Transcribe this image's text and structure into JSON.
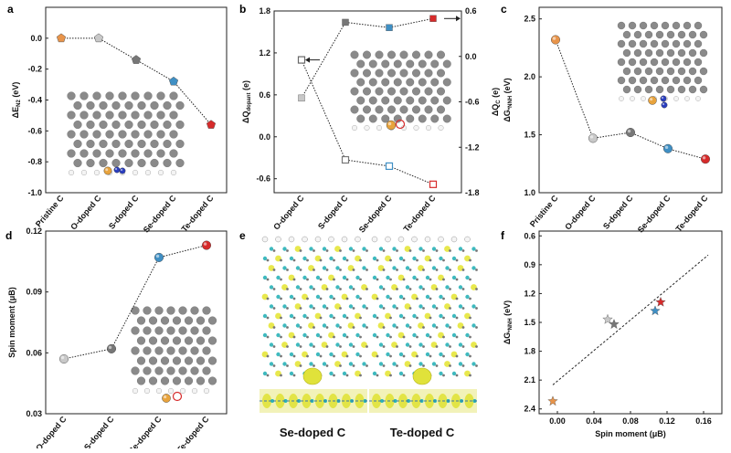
{
  "panels": {
    "a": {
      "letter": "a"
    },
    "b": {
      "letter": "b"
    },
    "c": {
      "letter": "c"
    },
    "d": {
      "letter": "d"
    },
    "e": {
      "letter": "e",
      "left_caption": "Se-doped C",
      "right_caption": "Te-doped C"
    },
    "f": {
      "letter": "f"
    }
  },
  "chart_data": [
    {
      "panel": "a",
      "type": "line",
      "categories": [
        "Pristine C",
        "O-doped C",
        "S-doped C",
        "Se-doped C",
        "Te-doped C"
      ],
      "series": [
        {
          "values": [
            0.0,
            0.0,
            -0.14,
            -0.28,
            -0.56
          ]
        }
      ],
      "ylabel": "ΔE_N2 (eV)",
      "ylim": [
        -1.0,
        0.2
      ],
      "yticks": [
        "0.0",
        "-0.2",
        "-0.4",
        "-0.6",
        "-0.8",
        "-1.0"
      ],
      "marker_colors": [
        "#e8944a",
        "#c8c8c8",
        "#777777",
        "#3f8fc4",
        "#d62b2b"
      ],
      "marker_shape": "pentagon"
    },
    {
      "panel": "b",
      "type": "line",
      "categories": [
        "O-doped C",
        "S-doped C",
        "Se-doped C",
        "Te-doped C"
      ],
      "series": [
        {
          "axis": "left",
          "marker": "open-square",
          "values": [
            1.1,
            -0.33,
            -0.42,
            -0.68
          ]
        },
        {
          "axis": "right",
          "marker": "filled-square",
          "values": [
            -0.55,
            0.45,
            0.38,
            0.5
          ]
        }
      ],
      "ylabel": "ΔQ_dopant (e)",
      "y2label": "ΔQ_C (e)",
      "ylim": [
        -0.8,
        1.8
      ],
      "y2lim": [
        -1.8,
        0.6
      ],
      "yticks": [
        "1.8",
        "1.2",
        "0.6",
        "0.0",
        "-0.6"
      ],
      "y2ticks": [
        "0.6",
        "0.0",
        "-0.6",
        "-1.2",
        "-1.8"
      ],
      "marker_colors": [
        "#c8c8c8",
        "#777777",
        "#3f8fc4",
        "#d62b2b"
      ]
    },
    {
      "panel": "c",
      "type": "line",
      "categories": [
        "Pristine C",
        "O-doped C",
        "S-doped C",
        "Se-doped C",
        "Te-doped C"
      ],
      "series": [
        {
          "values": [
            2.32,
            1.47,
            1.52,
            1.38,
            1.29
          ]
        }
      ],
      "ylabel": "ΔG_*NNH (eV)",
      "ylim": [
        1.0,
        2.6
      ],
      "yticks": [
        "2.5",
        "2.0",
        "1.5",
        "1.0"
      ],
      "marker_colors": [
        "#e8944a",
        "#c8c8c8",
        "#777777",
        "#3f8fc4",
        "#d62b2b"
      ],
      "marker_shape": "sphere"
    },
    {
      "panel": "d",
      "type": "line",
      "categories": [
        "O-doped C",
        "S-doped C",
        "Se-doped C",
        "Te-doped C"
      ],
      "series": [
        {
          "values": [
            0.057,
            0.062,
            0.107,
            0.113
          ]
        }
      ],
      "ylabel": "Spin moment (μB)",
      "ylim": [
        0.03,
        0.12
      ],
      "yticks": [
        "0.12",
        "0.09",
        "0.06",
        "0.03"
      ],
      "marker_colors": [
        "#c8c8c8",
        "#777777",
        "#3f8fc4",
        "#d62b2b"
      ],
      "marker_shape": "sphere"
    },
    {
      "panel": "f",
      "type": "scatter",
      "series": [
        {
          "x": [
            -0.005,
            0.055,
            0.062,
            0.107,
            0.113
          ],
          "y": [
            2.32,
            1.47,
            1.52,
            1.38,
            1.29
          ]
        }
      ],
      "xlabel": "Spin moment (μB)",
      "ylabel": "ΔG_*NNH (eV)",
      "xlim": [
        -0.02,
        0.18
      ],
      "ylim": [
        2.45,
        0.55
      ],
      "xticks": [
        "0.00",
        "0.04",
        "0.08",
        "0.12",
        "0.16"
      ],
      "yticks": [
        "0.6",
        "0.9",
        "1.2",
        "1.5",
        "1.8",
        "2.1",
        "2.4"
      ],
      "fit_line": {
        "x": [
          -0.005,
          0.165
        ],
        "y": [
          2.15,
          0.8
        ]
      },
      "marker_colors": [
        "#e8944a",
        "#c8c8c8",
        "#777777",
        "#3f8fc4",
        "#d62b2b"
      ],
      "marker_shape": "star"
    }
  ]
}
